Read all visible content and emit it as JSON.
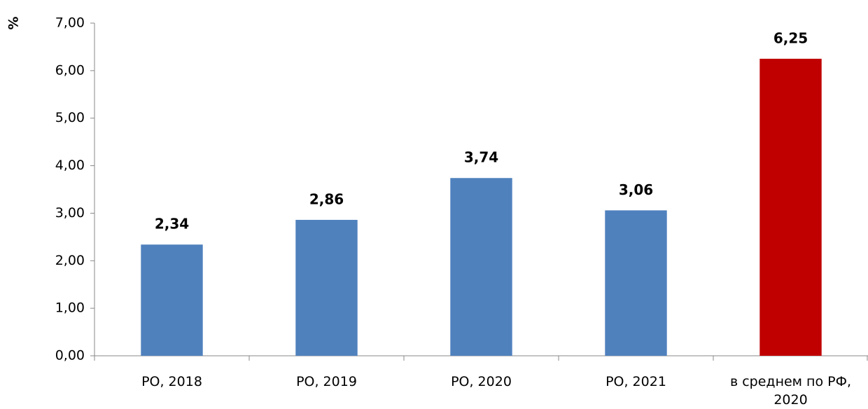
{
  "chart_data": {
    "type": "bar",
    "y_label": "%",
    "categories": [
      "РО, 2018",
      "РО, 2019",
      "РО, 2020",
      "РО, 2021",
      "в среднем по РФ, 2020"
    ],
    "values": [
      2.34,
      2.86,
      3.74,
      3.06,
      6.25
    ],
    "value_labels": [
      "2,34",
      "2,86",
      "3,74",
      "3,06",
      "6,25"
    ],
    "colors": [
      "#4f81bd",
      "#4f81bd",
      "#4f81bd",
      "#4f81bd",
      "#c00000"
    ],
    "ylim": [
      0,
      7
    ],
    "yticks": [
      {
        "value": 0,
        "label": "0,00"
      },
      {
        "value": 1,
        "label": "1,00"
      },
      {
        "value": 2,
        "label": "2,00"
      },
      {
        "value": 3,
        "label": "3,00"
      },
      {
        "value": 4,
        "label": "4,00"
      },
      {
        "value": 5,
        "label": "5,00"
      },
      {
        "value": 6,
        "label": "6,00"
      },
      {
        "value": 7,
        "label": "7,00"
      }
    ],
    "grid": false
  }
}
